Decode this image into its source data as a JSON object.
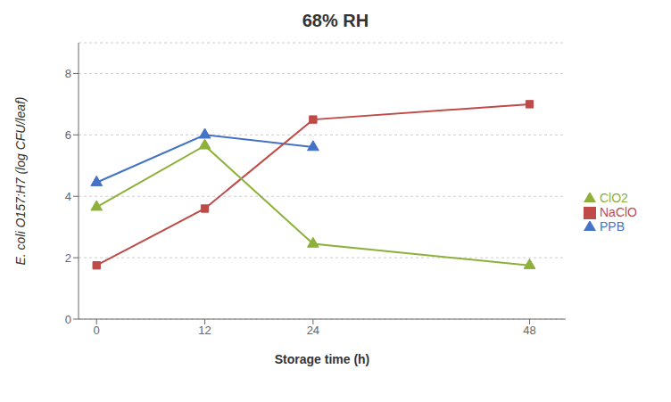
{
  "chart_data": {
    "type": "line",
    "title": "68% RH",
    "x_label": "Storage time (h)",
    "y_label": "E. coli O157:H7  (log CFU/leaf)",
    "x": [
      0,
      12,
      24,
      48
    ],
    "series": [
      {
        "name": "PPB",
        "color": "#4472C4",
        "marker": "triangle",
        "x": [
          0,
          12,
          24
        ],
        "values": [
          4.45,
          6.0,
          5.6
        ]
      },
      {
        "name": "NaClO",
        "color": "#BE4B48",
        "marker": "square",
        "values": [
          1.75,
          3.6,
          6.5,
          7.0
        ]
      },
      {
        "name": "ClO2",
        "color": "#8DB03A",
        "marker": "triangle",
        "values": [
          3.65,
          5.65,
          2.45,
          1.75
        ]
      }
    ],
    "xlim": [
      -2,
      52
    ],
    "xticks": [
      0,
      12,
      24,
      48
    ],
    "ylim": [
      0.0,
      9.0
    ],
    "yticks": [
      0.0,
      2.0,
      4.0,
      6.0,
      8.0
    ],
    "grid": true,
    "legend": "right"
  }
}
